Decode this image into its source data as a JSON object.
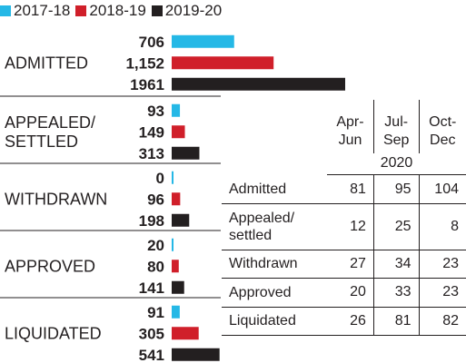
{
  "chart_data": {
    "type": "bar",
    "orientation": "horizontal",
    "legend_position": "top-left",
    "series": [
      {
        "name": "2017-18",
        "color": "#25b8e6"
      },
      {
        "name": "2018-19",
        "color": "#d01f2a"
      },
      {
        "name": "2019-20",
        "color": "#231f20"
      }
    ],
    "groups": [
      {
        "label": [
          "ADMITTED"
        ],
        "values": [
          706,
          1152,
          1961
        ],
        "value_labels": [
          "706",
          "1,152",
          "1961"
        ]
      },
      {
        "label": [
          "APPEALED/",
          "SETTLED"
        ],
        "values": [
          93,
          149,
          313
        ],
        "value_labels": [
          "93",
          "149",
          "313"
        ]
      },
      {
        "label": [
          "WITHDRAWN"
        ],
        "values": [
          0,
          96,
          198
        ],
        "value_labels": [
          "0",
          "96",
          "198"
        ]
      },
      {
        "label": [
          "APPROVED"
        ],
        "values": [
          20,
          80,
          141
        ],
        "value_labels": [
          "20",
          "80",
          "141"
        ]
      },
      {
        "label": [
          "LIQUIDATED"
        ],
        "values": [
          91,
          305,
          541
        ],
        "value_labels": [
          "91",
          "305",
          "541"
        ]
      }
    ]
  },
  "table": {
    "year": "2020",
    "columns": [
      [
        "Apr-",
        "Jun"
      ],
      [
        "Jul-",
        "Sep"
      ],
      [
        "Oct-",
        "Dec"
      ]
    ],
    "rows": [
      {
        "label": [
          "Admitted"
        ],
        "values": [
          "81",
          "95",
          "104"
        ]
      },
      {
        "label": [
          "Appealed/",
          "settled"
        ],
        "values": [
          "12",
          "25",
          "8"
        ]
      },
      {
        "label": [
          "Withdrawn"
        ],
        "values": [
          "27",
          "34",
          "23"
        ]
      },
      {
        "label": [
          "Approved"
        ],
        "values": [
          "20",
          "33",
          "23"
        ]
      },
      {
        "label": [
          "Liquidated"
        ],
        "values": [
          "26",
          "81",
          "82"
        ]
      }
    ]
  }
}
